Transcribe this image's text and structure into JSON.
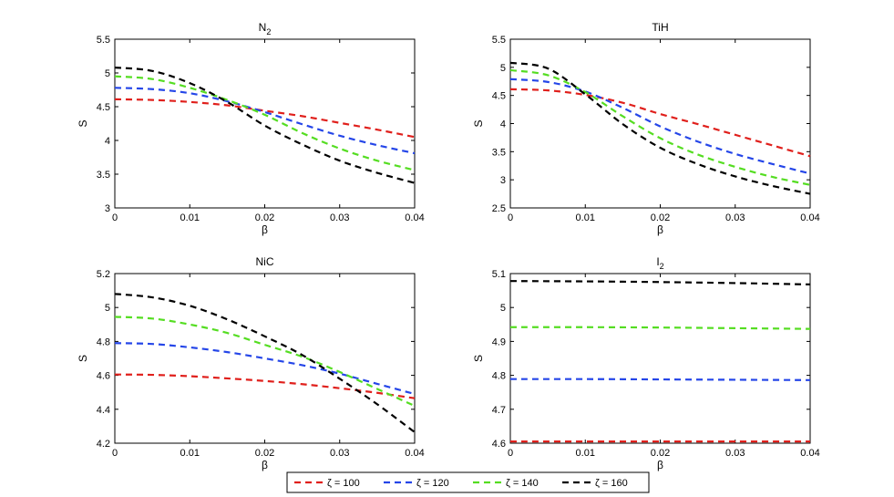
{
  "chart_data": [
    {
      "type": "line",
      "title": "N",
      "title_subscript": "2",
      "xlabel": "β",
      "ylabel": "S",
      "xlim": [
        0,
        0.04
      ],
      "ylim": [
        3,
        5.5
      ],
      "xticks": [
        0,
        0.01,
        0.02,
        0.03,
        0.04
      ],
      "xtick_labels": [
        "0",
        "0.01",
        "0.02",
        "0.03",
        "0.04"
      ],
      "yticks": [
        3,
        3.5,
        4,
        4.5,
        5,
        5.5
      ],
      "ytick_labels": [
        "3",
        "3.5",
        "4",
        "4.5",
        "5",
        "5.5"
      ],
      "series": [
        {
          "name": "ζ = 100",
          "color": "#e0201c",
          "x": [
            0,
            0.005,
            0.01,
            0.015,
            0.02,
            0.025,
            0.03,
            0.035,
            0.04
          ],
          "values": [
            4.61,
            4.6,
            4.57,
            4.52,
            4.44,
            4.36,
            4.26,
            4.16,
            4.05
          ]
        },
        {
          "name": "ζ = 120",
          "color": "#2546e8",
          "x": [
            0,
            0.005,
            0.01,
            0.015,
            0.02,
            0.025,
            0.03,
            0.035,
            0.04
          ],
          "values": [
            4.78,
            4.76,
            4.7,
            4.58,
            4.42,
            4.24,
            4.07,
            3.93,
            3.81
          ]
        },
        {
          "name": "ζ = 140",
          "color": "#55dd22",
          "x": [
            0,
            0.005,
            0.01,
            0.015,
            0.02,
            0.025,
            0.03,
            0.035,
            0.04
          ],
          "values": [
            4.95,
            4.91,
            4.78,
            4.6,
            4.38,
            4.11,
            3.88,
            3.7,
            3.56
          ]
        },
        {
          "name": "ζ = 160",
          "color": "#000000",
          "x": [
            0,
            0.005,
            0.01,
            0.015,
            0.02,
            0.025,
            0.03,
            0.035,
            0.04
          ],
          "values": [
            5.08,
            5.03,
            4.85,
            4.57,
            4.22,
            3.94,
            3.7,
            3.52,
            3.37
          ]
        }
      ]
    },
    {
      "type": "line",
      "title": "TiH",
      "title_subscript": "",
      "xlabel": "β",
      "ylabel": "S",
      "xlim": [
        0,
        0.04
      ],
      "ylim": [
        2.5,
        5.5
      ],
      "xticks": [
        0,
        0.01,
        0.02,
        0.03,
        0.04
      ],
      "xtick_labels": [
        "0",
        "0.01",
        "0.02",
        "0.03",
        "0.04"
      ],
      "yticks": [
        2.5,
        3,
        3.5,
        4,
        4.5,
        5,
        5.5
      ],
      "ytick_labels": [
        "2.5",
        "3",
        "3.5",
        "4",
        "4.5",
        "5",
        "5.5"
      ],
      "series": [
        {
          "name": "ζ = 100",
          "color": "#e0201c",
          "x": [
            0,
            0.005,
            0.01,
            0.015,
            0.02,
            0.025,
            0.03,
            0.035,
            0.04
          ],
          "values": [
            4.61,
            4.59,
            4.51,
            4.37,
            4.17,
            3.99,
            3.8,
            3.61,
            3.42
          ]
        },
        {
          "name": "ζ = 120",
          "color": "#2546e8",
          "x": [
            0,
            0.005,
            0.01,
            0.015,
            0.02,
            0.025,
            0.03,
            0.035,
            0.04
          ],
          "values": [
            4.79,
            4.74,
            4.57,
            4.28,
            3.95,
            3.68,
            3.46,
            3.28,
            3.11
          ]
        },
        {
          "name": "ζ = 140",
          "color": "#55dd22",
          "x": [
            0,
            0.005,
            0.01,
            0.015,
            0.02,
            0.025,
            0.03,
            0.035,
            0.04
          ],
          "values": [
            4.95,
            4.86,
            4.56,
            4.13,
            3.74,
            3.45,
            3.23,
            3.05,
            2.91
          ]
        },
        {
          "name": "ζ = 160",
          "color": "#000000",
          "x": [
            0,
            0.005,
            0.01,
            0.015,
            0.02,
            0.025,
            0.03,
            0.035,
            0.04
          ],
          "values": [
            5.08,
            4.98,
            4.52,
            3.99,
            3.57,
            3.28,
            3.06,
            2.89,
            2.75
          ]
        }
      ]
    },
    {
      "type": "line",
      "title": "NiC",
      "title_subscript": "",
      "xlabel": "β",
      "ylabel": "S",
      "xlim": [
        0,
        0.04
      ],
      "ylim": [
        4.2,
        5.2
      ],
      "xticks": [
        0,
        0.01,
        0.02,
        0.03,
        0.04
      ],
      "xtick_labels": [
        "0",
        "0.01",
        "0.02",
        "0.03",
        "0.04"
      ],
      "yticks": [
        4.2,
        4.4,
        4.6,
        4.8,
        5,
        5.2
      ],
      "ytick_labels": [
        "4.2",
        "4.4",
        "4.6",
        "4.8",
        "5",
        "5.2"
      ],
      "series": [
        {
          "name": "ζ = 100",
          "color": "#e0201c",
          "x": [
            0,
            0.005,
            0.01,
            0.015,
            0.02,
            0.025,
            0.03,
            0.035,
            0.04
          ],
          "values": [
            4.605,
            4.603,
            4.595,
            4.582,
            4.567,
            4.548,
            4.524,
            4.497,
            4.465
          ]
        },
        {
          "name": "ζ = 120",
          "color": "#2546e8",
          "x": [
            0,
            0.005,
            0.01,
            0.015,
            0.02,
            0.025,
            0.03,
            0.035,
            0.04
          ],
          "values": [
            4.79,
            4.785,
            4.765,
            4.737,
            4.7,
            4.66,
            4.61,
            4.55,
            4.49
          ]
        },
        {
          "name": "ζ = 140",
          "color": "#55dd22",
          "x": [
            0,
            0.005,
            0.01,
            0.015,
            0.02,
            0.025,
            0.03,
            0.035,
            0.04
          ],
          "values": [
            4.945,
            4.935,
            4.9,
            4.85,
            4.78,
            4.71,
            4.62,
            4.52,
            4.42
          ]
        },
        {
          "name": "ζ = 160",
          "color": "#000000",
          "x": [
            0,
            0.005,
            0.01,
            0.015,
            0.02,
            0.025,
            0.03,
            0.035,
            0.04
          ],
          "values": [
            5.08,
            5.06,
            5.01,
            4.93,
            4.83,
            4.72,
            4.58,
            4.43,
            4.265
          ]
        }
      ]
    },
    {
      "type": "line",
      "title": "I",
      "title_subscript": "2",
      "xlabel": "β",
      "ylabel": "S",
      "xlim": [
        0,
        0.04
      ],
      "ylim": [
        4.6,
        5.1
      ],
      "xticks": [
        0,
        0.01,
        0.02,
        0.03,
        0.04
      ],
      "xtick_labels": [
        "0",
        "0.01",
        "0.02",
        "0.03",
        "0.04"
      ],
      "yticks": [
        4.6,
        4.7,
        4.8,
        4.9,
        5,
        5.1
      ],
      "ytick_labels": [
        "4.6",
        "4.7",
        "4.8",
        "4.9",
        "5",
        "5.1"
      ],
      "series": [
        {
          "name": "ζ = 100",
          "color": "#e0201c",
          "x": [
            0,
            0.01,
            0.02,
            0.03,
            0.04
          ],
          "values": [
            4.605,
            4.605,
            4.605,
            4.605,
            4.605
          ]
        },
        {
          "name": "ζ = 120",
          "color": "#2546e8",
          "x": [
            0,
            0.01,
            0.02,
            0.03,
            0.04
          ],
          "values": [
            4.789,
            4.789,
            4.788,
            4.787,
            4.786
          ]
        },
        {
          "name": "ζ = 140",
          "color": "#55dd22",
          "x": [
            0,
            0.01,
            0.02,
            0.03,
            0.04
          ],
          "values": [
            4.942,
            4.942,
            4.941,
            4.939,
            4.937
          ]
        },
        {
          "name": "ζ = 160",
          "color": "#000000",
          "x": [
            0,
            0.01,
            0.02,
            0.03,
            0.04
          ],
          "values": [
            5.078,
            5.077,
            5.075,
            5.072,
            5.068
          ]
        }
      ]
    }
  ],
  "legend": {
    "entries": [
      {
        "label": "ζ = 100",
        "color": "#e0201c"
      },
      {
        "label": "ζ = 120",
        "color": "#2546e8"
      },
      {
        "label": "ζ = 140",
        "color": "#55dd22"
      },
      {
        "label": "ζ = 160",
        "color": "#000000"
      }
    ],
    "placement": "bottom-center"
  }
}
